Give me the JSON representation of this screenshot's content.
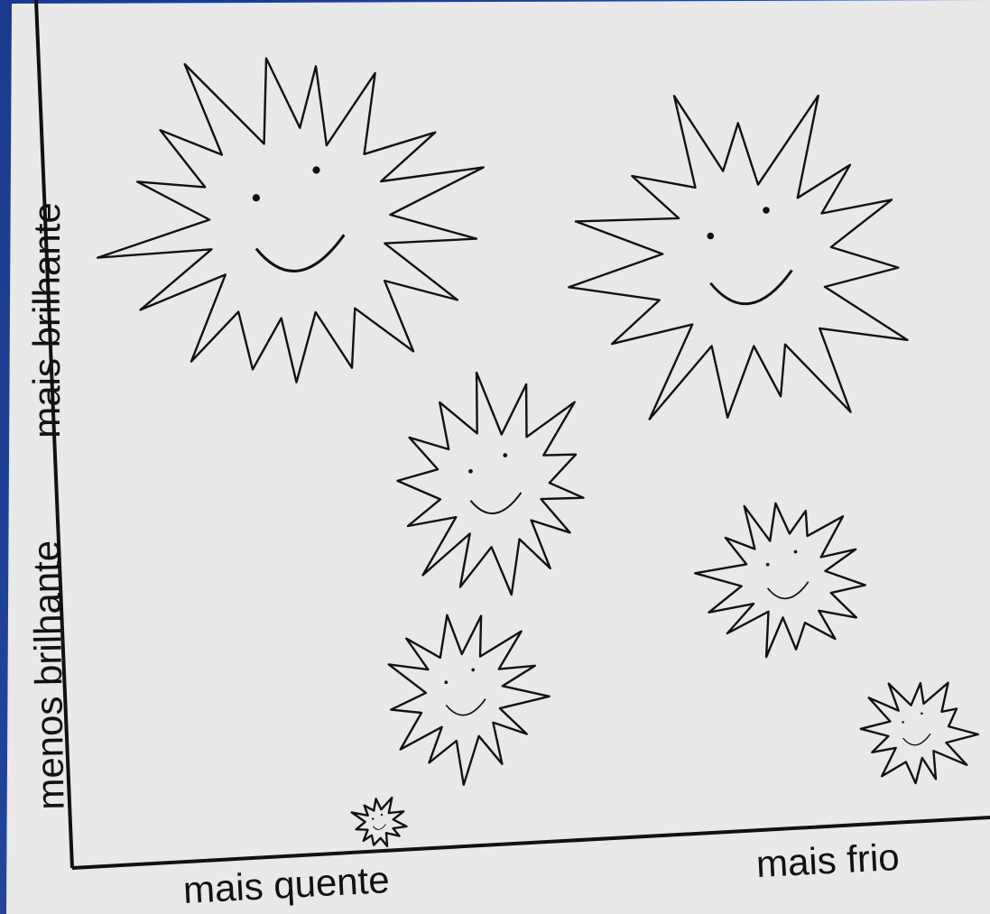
{
  "axes": {
    "y_top": "mais brilhante",
    "y_bottom": "menos brilhante",
    "x_left": "mais quente",
    "x_right": "mais frio"
  }
}
